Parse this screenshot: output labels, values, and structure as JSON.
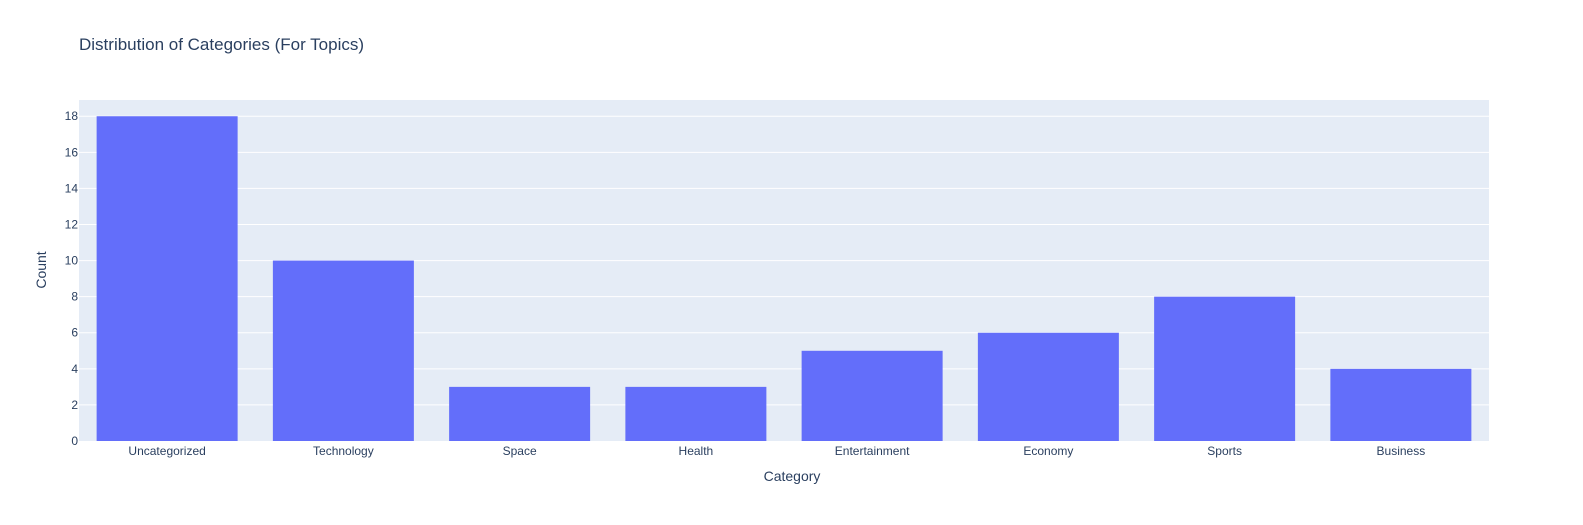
{
  "chart_data": {
    "type": "bar",
    "title": "Distribution of Categories (For Topics)",
    "xlabel": "Category",
    "ylabel": "Count",
    "categories": [
      "Uncategorized",
      "Technology",
      "Space",
      "Health",
      "Entertainment",
      "Economy",
      "Sports",
      "Business"
    ],
    "values": [
      18,
      10,
      3,
      3,
      5,
      6,
      8,
      4
    ],
    "ylim": [
      0,
      18.9
    ],
    "yticks": [
      0,
      2,
      4,
      6,
      8,
      10,
      12,
      14,
      16,
      18
    ],
    "grid": true,
    "legend": "none",
    "colors": {
      "bar": "#636efa",
      "plot_background": "#e5ecf6",
      "grid": "#ffffff",
      "text": "#2a3f5f"
    }
  }
}
